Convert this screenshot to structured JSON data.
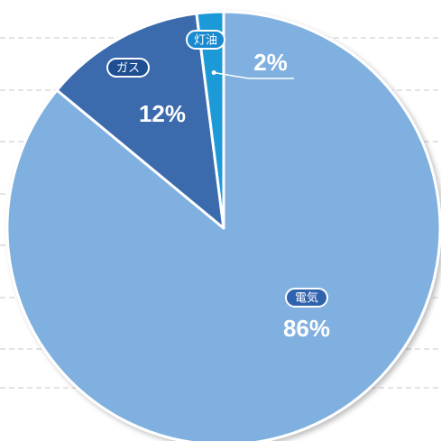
{
  "chart_data": {
    "type": "pie",
    "categories": [
      "電気",
      "ガス",
      "灯油"
    ],
    "values": [
      86,
      12,
      2
    ],
    "value_labels": [
      "86%",
      "12%",
      "2%"
    ],
    "colors": [
      "#7fb0df",
      "#3a6aad",
      "#1a9ad8"
    ]
  }
}
